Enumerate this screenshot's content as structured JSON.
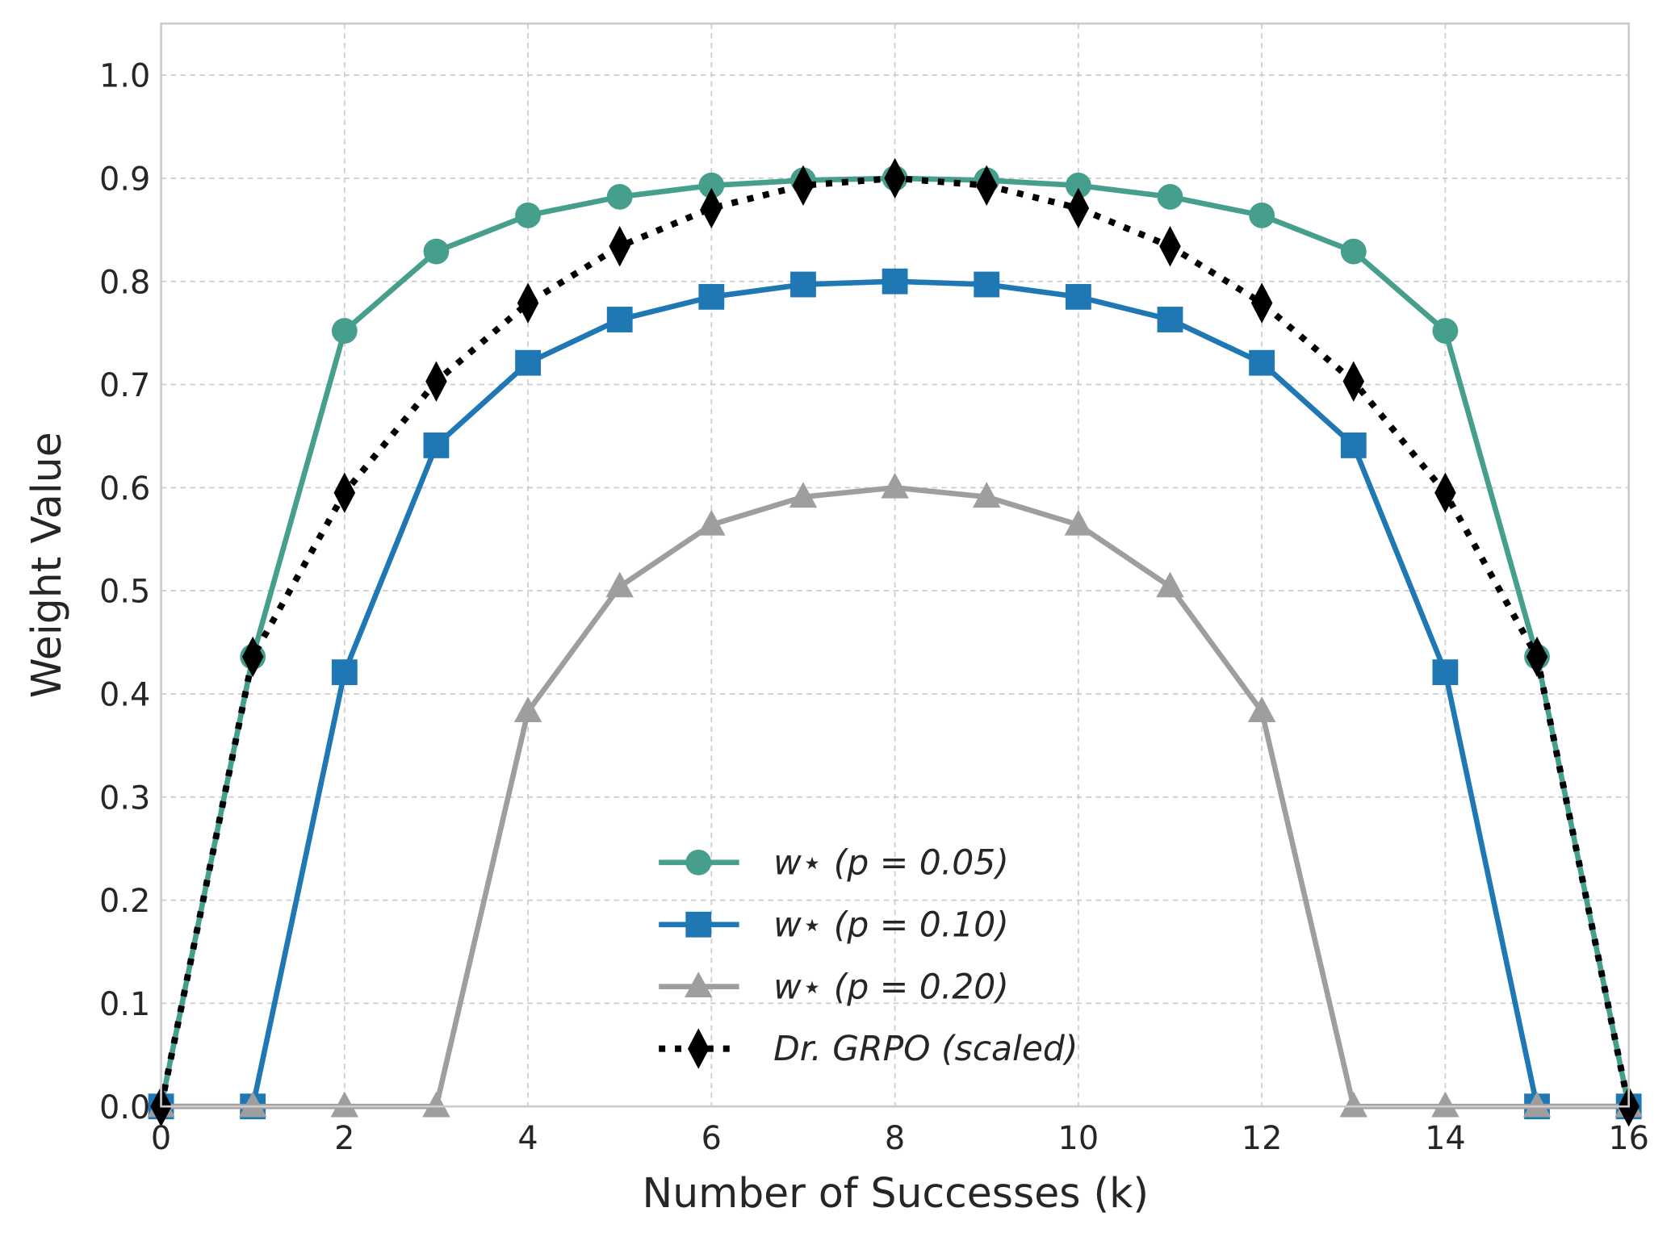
{
  "chart_data": {
    "type": "line",
    "title": "",
    "xlabel": "Number of Successes (k)",
    "ylabel": "Weight Value",
    "xlim": [
      0,
      16
    ],
    "ylim": [
      0,
      1.05
    ],
    "xticks": [
      "0",
      "2",
      "4",
      "6",
      "8",
      "10",
      "12",
      "14",
      "16"
    ],
    "yticks": [
      "0.0",
      "0.1",
      "0.2",
      "0.3",
      "0.4",
      "0.5",
      "0.6",
      "0.7",
      "0.8",
      "0.9",
      "1.0"
    ],
    "grid": true,
    "legend_position": "bottom-center",
    "x": [
      0,
      1,
      2,
      3,
      4,
      5,
      6,
      7,
      8,
      9,
      10,
      11,
      12,
      13,
      14,
      15,
      16
    ],
    "series": [
      {
        "name": "w⋆ (p = 0.05)",
        "color": "#469e8d",
        "marker": "circle",
        "line": "solid",
        "values": [
          0,
          0.436,
          0.752,
          0.829,
          0.864,
          0.882,
          0.893,
          0.898,
          0.9,
          0.898,
          0.893,
          0.882,
          0.864,
          0.829,
          0.752,
          0.436,
          0
        ]
      },
      {
        "name": "w⋆ (p = 0.10)",
        "color": "#1f77b4",
        "marker": "square",
        "line": "solid",
        "values": [
          0,
          0,
          0.421,
          0.641,
          0.721,
          0.763,
          0.785,
          0.797,
          0.8,
          0.797,
          0.785,
          0.763,
          0.721,
          0.641,
          0.421,
          0,
          0
        ]
      },
      {
        "name": "w⋆ (p = 0.20)",
        "color": "#9e9e9e",
        "marker": "triangle",
        "line": "solid",
        "values": [
          0,
          0,
          0,
          0,
          0.383,
          0.504,
          0.564,
          0.591,
          0.6,
          0.591,
          0.564,
          0.504,
          0.383,
          0,
          0,
          0,
          0
        ]
      },
      {
        "name": "Dr. GRPO (scaled)",
        "color": "#000000",
        "marker": "diamond",
        "line": "dotted",
        "values": [
          0,
          0.436,
          0.595,
          0.703,
          0.779,
          0.834,
          0.871,
          0.893,
          0.9,
          0.893,
          0.871,
          0.834,
          0.779,
          0.703,
          0.595,
          0.436,
          0
        ]
      }
    ]
  }
}
